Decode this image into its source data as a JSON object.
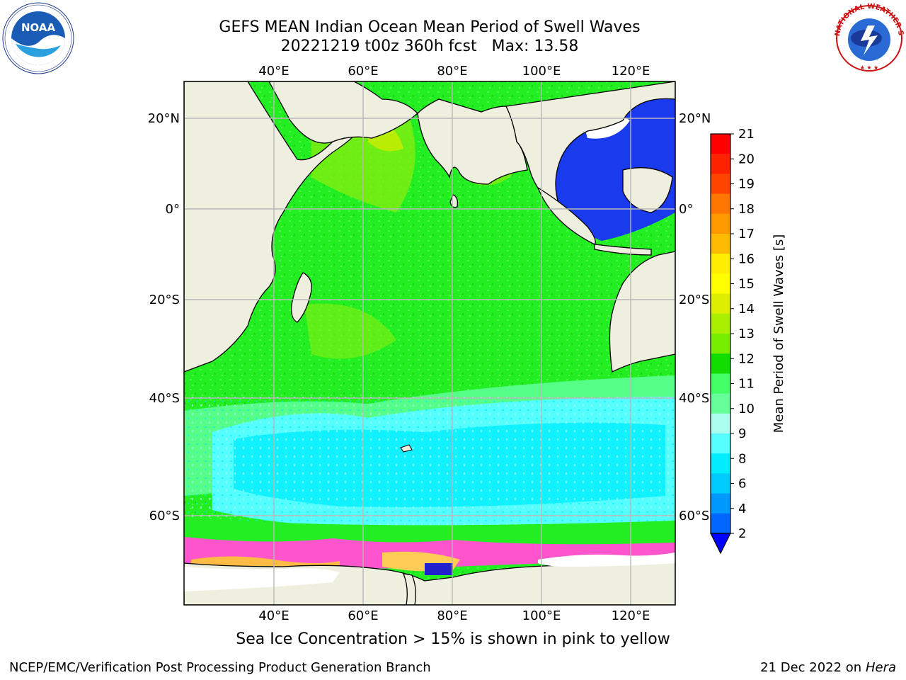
{
  "title": {
    "line1": "GEFS MEAN Indian Ocean Mean Period of Swell Waves",
    "line2": "20221219 t00z 360h fcst   Max: 13.58"
  },
  "logos": {
    "left": {
      "name": "noaa-logo",
      "text": "NOAA",
      "ring_text": "NATIONAL OCEANIC AND ATMOSPHERIC ADMINISTRATION · U.S. DEPARTMENT OF COMMERCE"
    },
    "right": {
      "name": "nws-logo",
      "ring_text": "NATIONAL WEATHER SERVICE"
    }
  },
  "map": {
    "region": "Indian Ocean",
    "lon_range": [
      20,
      130
    ],
    "lat_range": [
      -70,
      28
    ],
    "lon_labels": [
      "40°E",
      "60°E",
      "80°E",
      "100°E",
      "120°E"
    ],
    "lat_labels": [
      "20°N",
      "0°",
      "20°S",
      "40°S",
      "60°S"
    ],
    "grid": true,
    "land_color": "#efefe0",
    "ocean_dominant_color": "#22ee22"
  },
  "colorbar": {
    "label": "Mean Period of Swell Waves [s]",
    "ticks": [
      "21",
      "20",
      "19",
      "18",
      "17",
      "16",
      "15",
      "14",
      "13",
      "12",
      "11",
      "10",
      "9",
      "8",
      "6",
      "4",
      "2"
    ],
    "colors": [
      "#ff0000",
      "#ff2200",
      "#ff4400",
      "#ff7700",
      "#ff9900",
      "#ffbb00",
      "#ffee00",
      "#ffff00",
      "#ddee00",
      "#aaee00",
      "#77ee00",
      "#11dd00",
      "#44ff66",
      "#66ff99",
      "#aaffee",
      "#55ffff",
      "#00eeff",
      "#00ccff",
      "#0099ff",
      "#0066ff"
    ],
    "under_color": "#0000ff"
  },
  "note": "Sea Ice Concentration > 15% is shown in pink to yellow",
  "footer": {
    "left": "NCEP/EMC/Verification Post Processing Product Generation Branch",
    "right_date": "21 Dec 2022 on",
    "right_host": "Hera"
  }
}
